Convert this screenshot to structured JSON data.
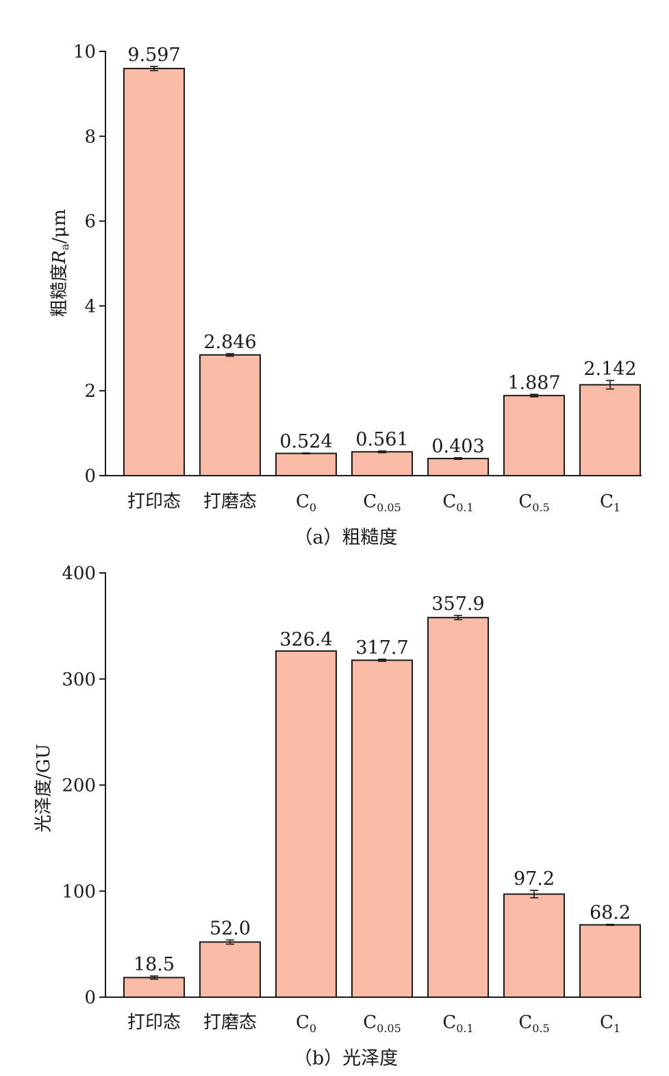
{
  "colors": {
    "bar_fill": "#f9bba6",
    "bar_stroke": "#1a1a1a",
    "axis": "#1a1a1a"
  },
  "chart_data": [
    {
      "type": "bar",
      "caption": "（a）粗糙度",
      "ylabel": {
        "main": "粗糙度",
        "symbol": "R",
        "subscript": "a",
        "unit": "/μm"
      },
      "ylim": [
        0,
        10
      ],
      "yticks": [
        "0",
        "2",
        "4",
        "6",
        "8",
        "10"
      ],
      "categories": [
        {
          "main": "打印态",
          "sub": ""
        },
        {
          "main": "打磨态",
          "sub": ""
        },
        {
          "main": "C",
          "sub": "0"
        },
        {
          "main": "C",
          "sub": "0.05"
        },
        {
          "main": "C",
          "sub": "0.1"
        },
        {
          "main": "C",
          "sub": "0.5"
        },
        {
          "main": "C",
          "sub": "1"
        }
      ],
      "values": [
        9.597,
        2.846,
        0.524,
        0.561,
        0.403,
        1.887,
        2.142
      ],
      "value_labels": [
        "9.597",
        "2.846",
        "0.524",
        "0.561",
        "0.403",
        "1.887",
        "2.142"
      ],
      "errors": [
        0.05,
        0.03,
        0.01,
        0.02,
        0.02,
        0.03,
        0.1
      ]
    },
    {
      "type": "bar",
      "caption": "（b）光泽度",
      "ylabel": {
        "main": "光泽度/GU",
        "symbol": "",
        "subscript": "",
        "unit": ""
      },
      "ylim": [
        0,
        400
      ],
      "yticks": [
        "0",
        "100",
        "200",
        "300",
        "400"
      ],
      "categories": [
        {
          "main": "打印态",
          "sub": ""
        },
        {
          "main": "打磨态",
          "sub": ""
        },
        {
          "main": "C",
          "sub": "0"
        },
        {
          "main": "C",
          "sub": "0.05"
        },
        {
          "main": "C",
          "sub": "0.1"
        },
        {
          "main": "C",
          "sub": "0.5"
        },
        {
          "main": "C",
          "sub": "1"
        }
      ],
      "values": [
        18.5,
        52.0,
        326.4,
        317.7,
        357.9,
        97.2,
        68.2
      ],
      "value_labels": [
        "18.5",
        "52.0",
        "326.4",
        "317.7",
        "357.9",
        "97.2",
        "68.2"
      ],
      "errors": [
        1.5,
        2.0,
        0.0,
        1.0,
        2.0,
        3.5,
        0.5
      ]
    }
  ]
}
